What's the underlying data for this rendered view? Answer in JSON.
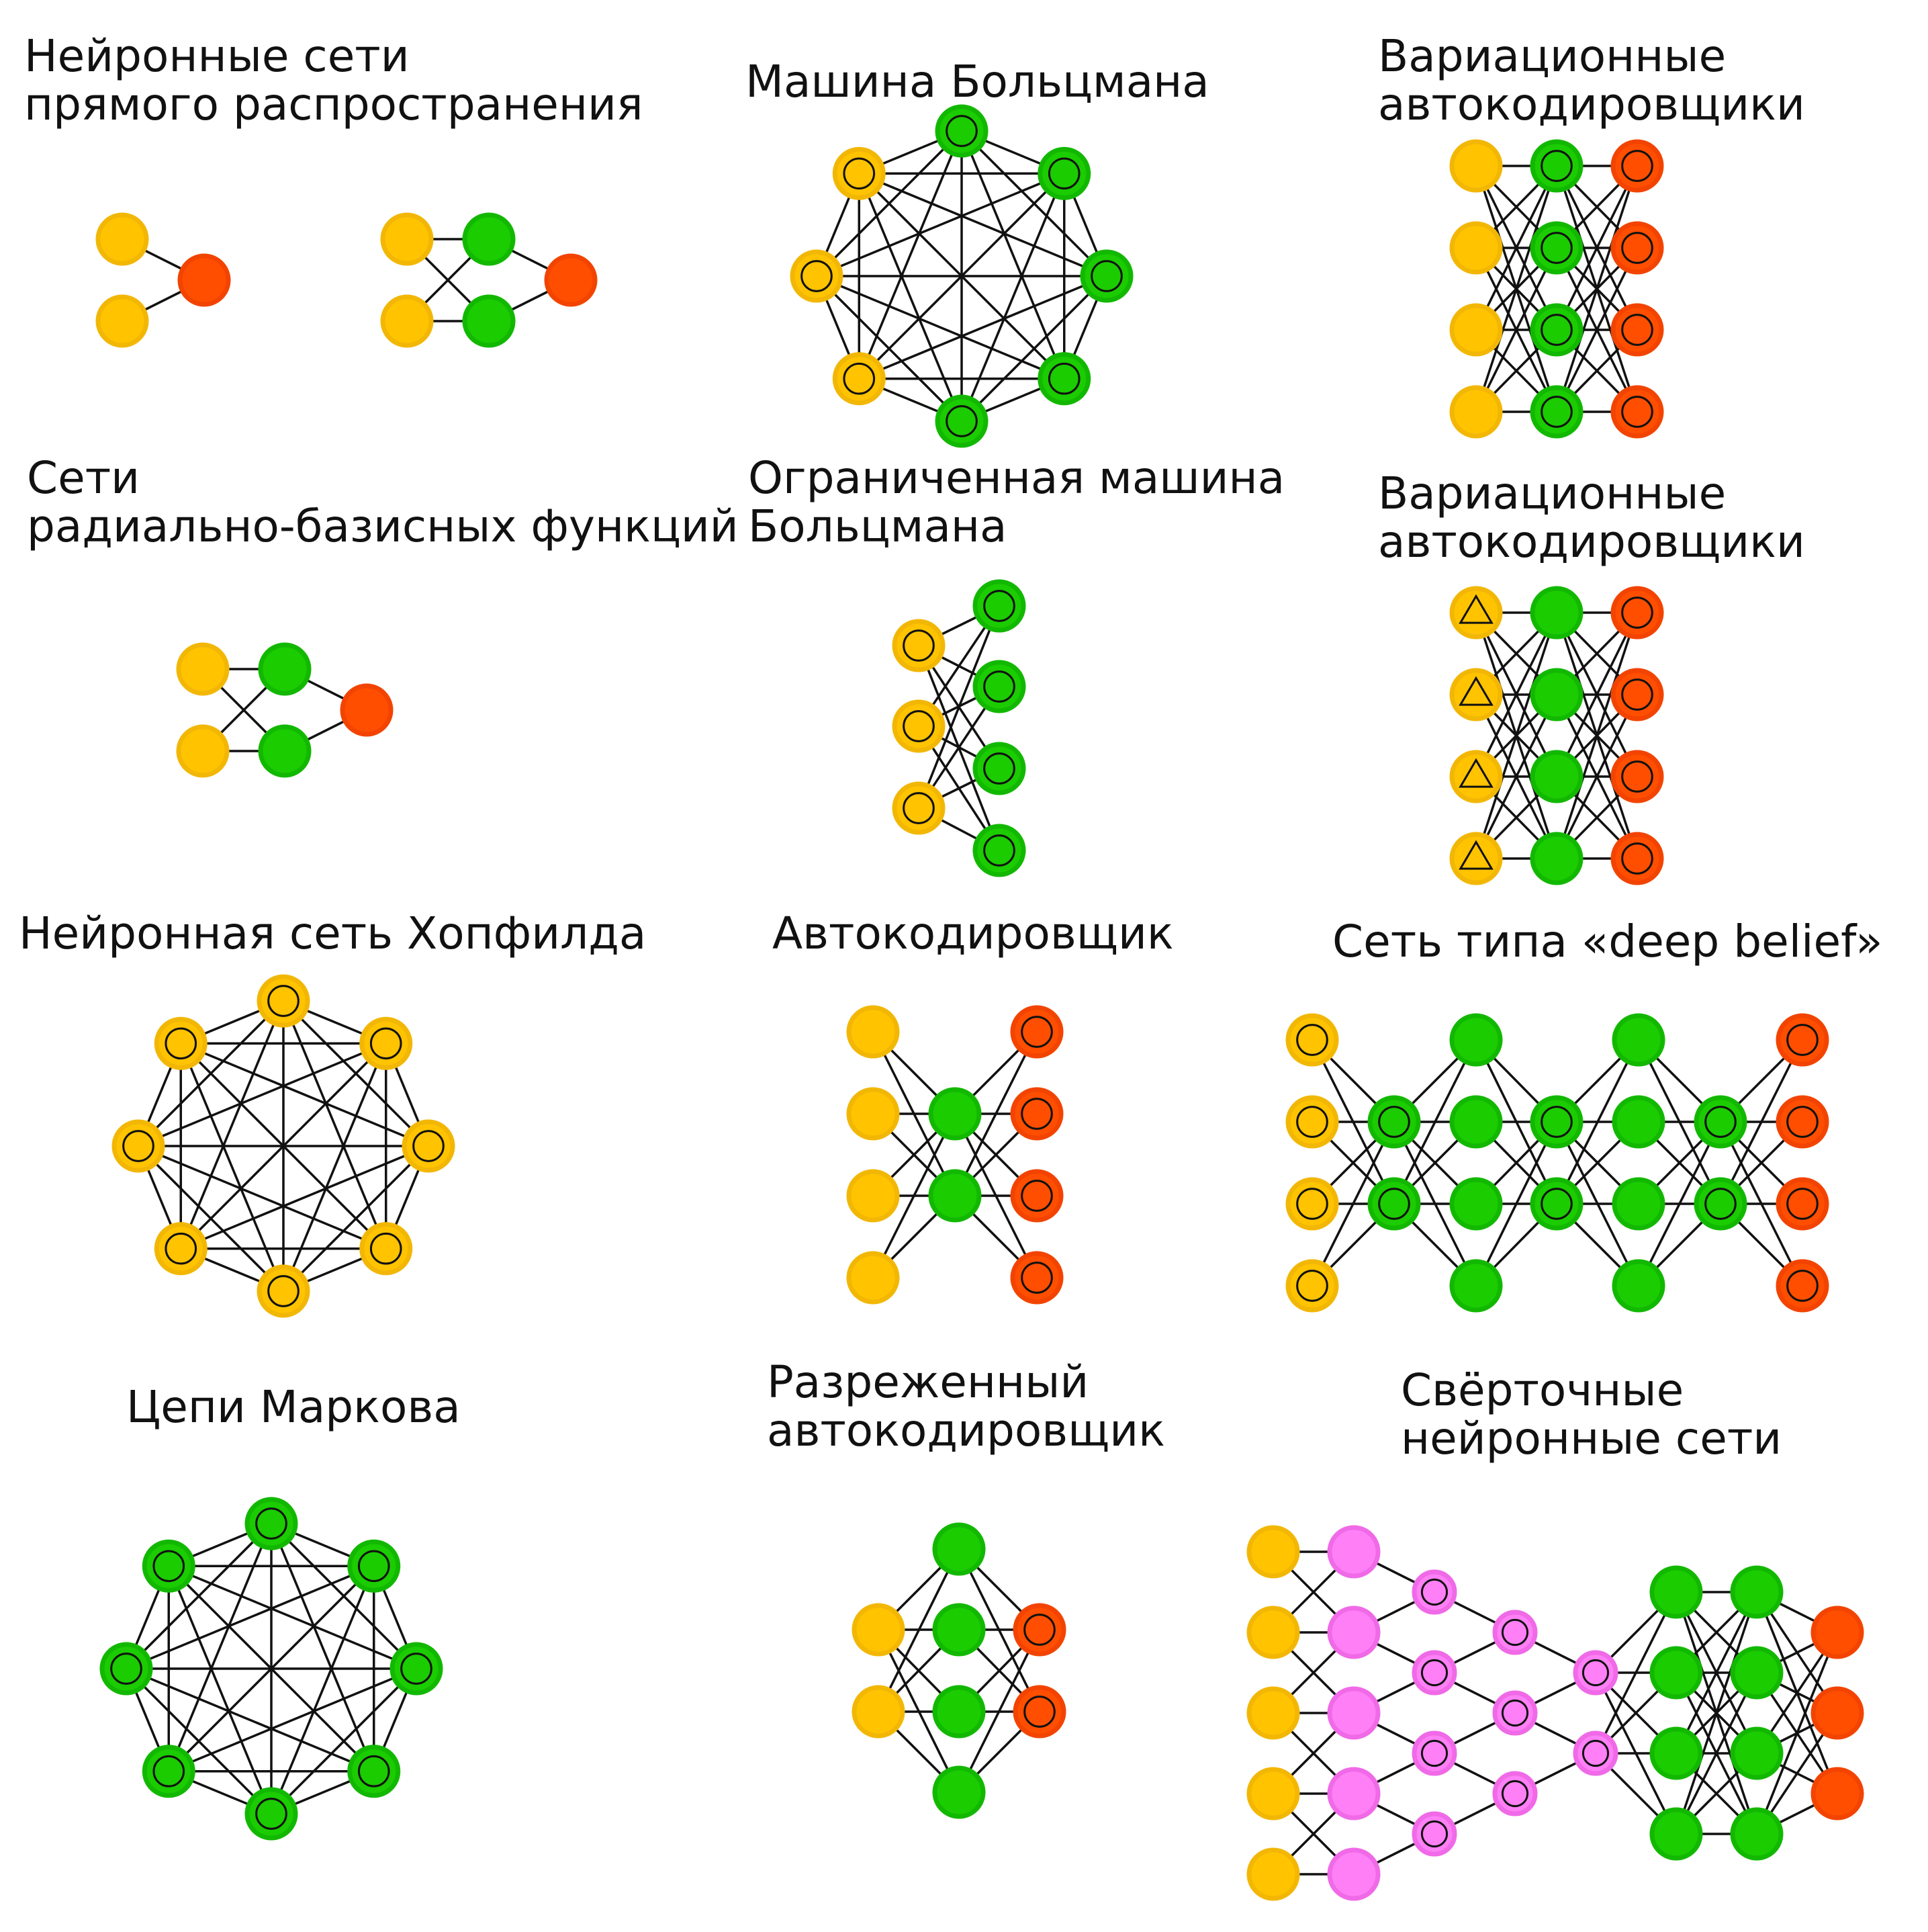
{
  "colors": {
    "input": "#FFC300",
    "input_stroke": "#F2B705",
    "hidden": "#1BCC00",
    "hidden_stroke": "#12B800",
    "output": "#FF4E00",
    "output_stroke": "#F24400",
    "conv": "#FF80F6",
    "conv_stroke": "#F06AE8",
    "edge": "#111111"
  },
  "diagrams": [
    {
      "id": "ff",
      "title_lines": [
        "Нейронные сети",
        "прямого распространения"
      ]
    },
    {
      "id": "bm",
      "title_lines": [
        "Машина Больцмана"
      ]
    },
    {
      "id": "vae1",
      "title_lines": [
        "Вариационные",
        "автокодировщики"
      ]
    },
    {
      "id": "rbf",
      "title_lines": [
        "Сети",
        "радиально-базисных функций"
      ]
    },
    {
      "id": "rbm",
      "title_lines": [
        "Ограниченная машина",
        "Больцмана"
      ]
    },
    {
      "id": "vae2",
      "title_lines": [
        "Вариационные",
        "автокодировщики"
      ]
    },
    {
      "id": "hop",
      "title_lines": [
        "Нейронная сеть Хопфилда"
      ]
    },
    {
      "id": "ae",
      "title_lines": [
        "Автокодировщик"
      ]
    },
    {
      "id": "dbn",
      "title_lines": [
        "Сеть типа «deep belief»"
      ]
    },
    {
      "id": "mc",
      "title_lines": [
        "Цепи Маркова"
      ]
    },
    {
      "id": "sae",
      "title_lines": [
        "Разреженный",
        "автокодировщик"
      ]
    },
    {
      "id": "cnn",
      "title_lines": [
        "Свёрточные",
        "нейронные сети"
      ]
    }
  ]
}
